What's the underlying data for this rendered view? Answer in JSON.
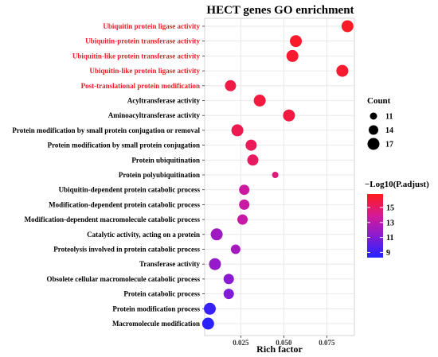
{
  "chart_data": {
    "type": "scatter",
    "title": "HECT genes GO enrichment",
    "xlabel": "Rich factor",
    "ylabel": "",
    "xlim": [
      0.004,
      0.091
    ],
    "x_ticks": [
      {
        "value": 0.025,
        "label": "0.025"
      },
      {
        "value": 0.05,
        "label": "0.050"
      },
      {
        "value": 0.075,
        "label": "0.075"
      }
    ],
    "size_legend": {
      "title": "Count",
      "items": [
        {
          "value": 11,
          "label": "11"
        },
        {
          "value": 14,
          "label": "14"
        },
        {
          "value": 17,
          "label": "17"
        }
      ]
    },
    "color_legend": {
      "title": "−Log10(P.adjust)",
      "range": [
        8.3,
        16.8
      ],
      "ticks": [
        {
          "value": 9,
          "label": "9"
        },
        {
          "value": 11,
          "label": "11"
        },
        {
          "value": 13,
          "label": "13"
        },
        {
          "value": 15,
          "label": "15"
        }
      ]
    },
    "label_colors": {
      "highlight": "#e8202a",
      "normal": "#000000"
    },
    "points": [
      {
        "term": "Ubiquitin protein ligase activity",
        "rich_factor": 0.087,
        "count": 17,
        "neg_log10_padj": 16.5,
        "highlight": true
      },
      {
        "term": "Ubiquitin-protein transferase activity",
        "rich_factor": 0.057,
        "count": 17,
        "neg_log10_padj": 16.4,
        "highlight": true
      },
      {
        "term": "Ubiquitin-like protein transferase activity",
        "rich_factor": 0.055,
        "count": 17,
        "neg_log10_padj": 16.3,
        "highlight": true
      },
      {
        "term": "Ubiquitin-like protein ligase activity",
        "rich_factor": 0.084,
        "count": 17,
        "neg_log10_padj": 16.3,
        "highlight": true
      },
      {
        "term": "Post-translational protein modification",
        "rich_factor": 0.019,
        "count": 16,
        "neg_log10_padj": 15.8,
        "highlight": true
      },
      {
        "term": "Acyltransferase activity",
        "rich_factor": 0.036,
        "count": 17,
        "neg_log10_padj": 16.0,
        "highlight": false
      },
      {
        "term": "Aminoacyltransferase activity",
        "rich_factor": 0.053,
        "count": 17,
        "neg_log10_padj": 15.9,
        "highlight": false
      },
      {
        "term": "Protein modification by small protein conjugation or removal",
        "rich_factor": 0.023,
        "count": 17,
        "neg_log10_padj": 15.6,
        "highlight": false
      },
      {
        "term": "Protein modification by small protein conjugation",
        "rich_factor": 0.031,
        "count": 16,
        "neg_log10_padj": 15.4,
        "highlight": false
      },
      {
        "term": "Protein ubiquitination",
        "rich_factor": 0.032,
        "count": 16,
        "neg_log10_padj": 15.2,
        "highlight": false
      },
      {
        "term": "Protein polyubiquitination",
        "rich_factor": 0.045,
        "count": 10,
        "neg_log10_padj": 14.6,
        "highlight": false
      },
      {
        "term": "Ubiquitin-dependent protein catabolic process",
        "rich_factor": 0.027,
        "count": 15,
        "neg_log10_padj": 13.6,
        "highlight": false
      },
      {
        "term": "Modification-dependent protein catabolic process",
        "rich_factor": 0.027,
        "count": 15,
        "neg_log10_padj": 13.5,
        "highlight": false
      },
      {
        "term": "Modification-dependent macromolecule catabolic process",
        "rich_factor": 0.026,
        "count": 15,
        "neg_log10_padj": 13.4,
        "highlight": false
      },
      {
        "term": "Catalytic activity, acting on a protein",
        "rich_factor": 0.011,
        "count": 17,
        "neg_log10_padj": 12.0,
        "highlight": false
      },
      {
        "term": "Proteolysis involved in protein catabolic process",
        "rich_factor": 0.022,
        "count": 14,
        "neg_log10_padj": 12.2,
        "highlight": false
      },
      {
        "term": "Transferase activity",
        "rich_factor": 0.01,
        "count": 17,
        "neg_log10_padj": 11.7,
        "highlight": false
      },
      {
        "term": "Obsolete cellular macromolecule catabolic process",
        "rich_factor": 0.018,
        "count": 15,
        "neg_log10_padj": 11.3,
        "highlight": false
      },
      {
        "term": "Protein catabolic process",
        "rich_factor": 0.018,
        "count": 15,
        "neg_log10_padj": 11.0,
        "highlight": false
      },
      {
        "term": "Protein modification process",
        "rich_factor": 0.007,
        "count": 17,
        "neg_log10_padj": 8.9,
        "highlight": false
      },
      {
        "term": "Macromolecule modification",
        "rich_factor": 0.006,
        "count": 17,
        "neg_log10_padj": 8.5,
        "highlight": false
      }
    ]
  }
}
